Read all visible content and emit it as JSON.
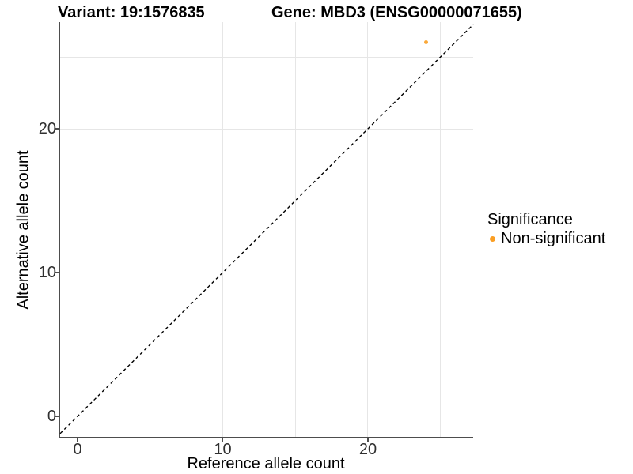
{
  "header": {
    "variant_title": "Variant: 19:1576835",
    "gene_title": "Gene: MBD3 (ENSG00000071655)"
  },
  "chart_data": {
    "type": "scatter",
    "xlabel": "Reference allele count",
    "ylabel": "Alternative allele count",
    "xlim": [
      -1.2,
      27.25
    ],
    "ylim": [
      -1.43,
      27.42
    ],
    "x_ticks": [
      0,
      10,
      20
    ],
    "y_ticks": [
      0,
      10,
      20
    ],
    "x_gridlines": [
      0,
      5,
      10,
      15,
      20,
      25
    ],
    "y_gridlines": [
      0,
      5,
      10,
      15,
      20,
      25
    ],
    "grid": "on",
    "identity_line": {
      "slope": 1,
      "intercept": 0,
      "style": "dashed",
      "color": "#000000",
      "width": 1.4,
      "dash": "4 3.5"
    },
    "series": [
      {
        "name": "Non-significant",
        "color": "#FA9E23",
        "points": [
          {
            "x": 24,
            "y": 26
          }
        ]
      }
    ],
    "legend": {
      "title": "Significance",
      "position": "right",
      "entries": [
        {
          "label": "Non-significant",
          "color": "#FA9E23"
        }
      ]
    }
  },
  "colors": {
    "axis_line": "#4d4d4d",
    "gridline": "#e6e6e6",
    "tick_label": "#303030",
    "background": "#ffffff"
  }
}
